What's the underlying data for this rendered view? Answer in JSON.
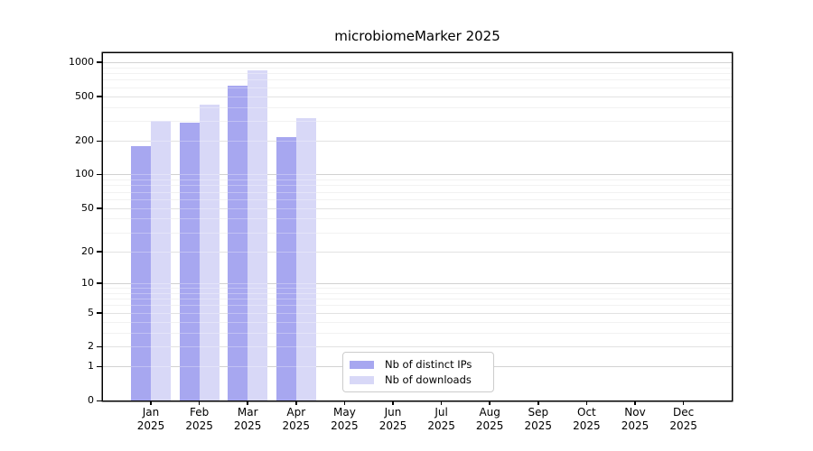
{
  "title": "microbiomeMarker 2025",
  "chart_data": {
    "type": "bar",
    "title": "microbiomeMarker 2025",
    "categories": [
      "Jan 2025",
      "Feb 2025",
      "Mar 2025",
      "Apr 2025",
      "May 2025",
      "Jun 2025",
      "Jul 2025",
      "Aug 2025",
      "Sep 2025",
      "Oct 2025",
      "Nov 2025",
      "Dec 2025"
    ],
    "series": [
      {
        "name": "Nb of distinct IPs",
        "color": "#a7a7f0",
        "values": [
          180,
          290,
          620,
          215,
          null,
          null,
          null,
          null,
          null,
          null,
          null,
          null
        ]
      },
      {
        "name": "Nb of downloads",
        "color": "#d8d8f7",
        "values": [
          300,
          420,
          850,
          320,
          null,
          null,
          null,
          null,
          null,
          null,
          null,
          null
        ]
      }
    ],
    "xlabel": "",
    "ylabel": "",
    "y_axis": {
      "scale": "log1p",
      "ticks": [
        0,
        1,
        2,
        5,
        10,
        20,
        50,
        100,
        200,
        500,
        1000
      ],
      "minor_ticks": [
        3,
        4,
        6,
        7,
        8,
        9,
        30,
        40,
        60,
        70,
        80,
        90,
        300,
        400,
        600,
        700,
        800,
        900
      ],
      "range_top": 1150
    },
    "grid": true,
    "legend_position": "inside-bottom-center",
    "colors": {
      "bar_distinct_ips": "#a7a7f0",
      "bar_downloads": "#d8d8f7",
      "major_grid": "#bfbfbf",
      "mid_grid": "#d6d6d6",
      "minor_grid": "#ececec",
      "frame": "#000000",
      "background": "#ffffff",
      "text": "#000000"
    }
  }
}
